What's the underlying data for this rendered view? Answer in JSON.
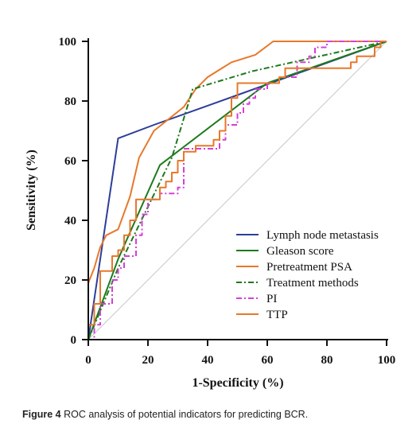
{
  "chart_data": {
    "type": "line",
    "xlabel": "1-Specificity (%)",
    "ylabel": "Sensitivity (%)",
    "xlim": [
      0,
      100
    ],
    "ylim": [
      0,
      100
    ],
    "xticks": [
      "0",
      "20",
      "40",
      "60",
      "80",
      "100"
    ],
    "yticks": [
      "0",
      "20",
      "40",
      "60",
      "80",
      "100"
    ],
    "grid": false,
    "legend_position": "bottom-right",
    "reference_line": {
      "x": [
        0,
        100
      ],
      "y": [
        0,
        100
      ],
      "color": "#c8c8c8"
    },
    "series": [
      {
        "name": "Lymph node metastasis",
        "color": "#2c3e99",
        "style": "solid",
        "x": [
          0,
          10,
          22,
          50,
          100
        ],
        "y": [
          0,
          67.5,
          72,
          82,
          100
        ]
      },
      {
        "name": "Gleason score",
        "color": "#1d7a1d",
        "style": "solid",
        "x": [
          0,
          10,
          24,
          60,
          100
        ],
        "y": [
          0,
          27,
          58.5,
          86,
          100
        ]
      },
      {
        "name": "Pretreatment PSA",
        "color": "#e8782a",
        "style": "solid",
        "x": [
          0,
          0,
          2,
          4,
          6,
          10,
          14,
          17,
          22,
          27,
          32,
          36,
          40,
          44,
          48,
          56,
          62,
          65,
          72,
          80,
          90,
          96,
          100
        ],
        "y": [
          0,
          19,
          24,
          31,
          35,
          37,
          48,
          61,
          70,
          74,
          78,
          84,
          88,
          90.5,
          93,
          95.5,
          100,
          100,
          100,
          100,
          100,
          100,
          100
        ]
      },
      {
        "name": "Treatment methods",
        "color": "#1d7a1d",
        "style": "dashdot",
        "x": [
          0,
          10,
          28,
          35,
          55,
          100
        ],
        "y": [
          0,
          24,
          61,
          84,
          90,
          100
        ]
      },
      {
        "name": "PI",
        "color": "#d63fd6",
        "style": "dashdot",
        "x": [
          0,
          2,
          2,
          4,
          4,
          6,
          6,
          8,
          8,
          10,
          10,
          12,
          12,
          14,
          14,
          16,
          16,
          18,
          18,
          20,
          20,
          22,
          22,
          24,
          24,
          30,
          30,
          32,
          32,
          44,
          44,
          46,
          46,
          50,
          50,
          52,
          52,
          54,
          54,
          56,
          56,
          60,
          60,
          64,
          64,
          70,
          70,
          74,
          74,
          76,
          76,
          80,
          80,
          100
        ],
        "y": [
          0,
          0,
          5,
          5,
          12,
          12,
          12,
          12,
          20,
          20,
          24,
          24,
          28,
          28,
          28,
          28,
          35,
          35,
          42,
          42,
          47,
          47,
          47,
          47,
          49,
          49,
          51,
          51,
          64,
          64,
          67,
          67,
          72,
          72,
          76,
          76,
          79,
          79,
          81,
          81,
          84,
          84,
          86,
          86,
          88,
          88,
          93,
          93,
          95,
          95,
          98,
          98,
          100,
          100
        ]
      },
      {
        "name": "TTP",
        "color": "#e8782a",
        "style": "solid",
        "x": [
          0,
          0,
          2,
          2,
          4,
          4,
          8,
          8,
          10,
          10,
          12,
          12,
          14,
          14,
          16,
          16,
          20,
          20,
          24,
          24,
          26,
          26,
          28,
          28,
          30,
          30,
          32,
          32,
          36,
          36,
          40,
          40,
          42,
          42,
          44,
          44,
          46,
          46,
          48,
          48,
          50,
          50,
          58,
          58,
          64,
          64,
          66,
          66,
          88,
          88,
          90,
          90,
          92,
          92,
          96,
          96,
          98,
          98,
          100
        ],
        "y": [
          0,
          5,
          5,
          12,
          12,
          23,
          23,
          28,
          28,
          30,
          30,
          35,
          35,
          40,
          40,
          47,
          47,
          47,
          47,
          51,
          51,
          53,
          53,
          56,
          56,
          60,
          60,
          63,
          63,
          65,
          65,
          65,
          65,
          67,
          67,
          70,
          70,
          75,
          75,
          81,
          81,
          86,
          86,
          86,
          86,
          88,
          88,
          91,
          91,
          93,
          93,
          95,
          95,
          95,
          95,
          98,
          98,
          100,
          100
        ]
      }
    ]
  },
  "caption": {
    "label": "Figure 4",
    "text": " ROC analysis of potential indicators for predicting BCR."
  }
}
